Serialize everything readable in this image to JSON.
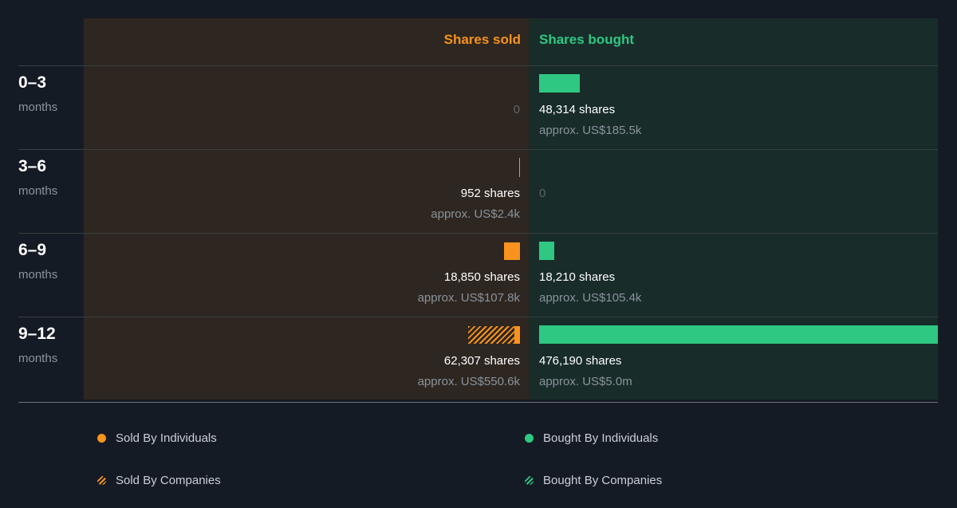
{
  "chart_data": {
    "type": "bar",
    "headers": {
      "sold": "Shares sold",
      "bought": "Shares bought"
    },
    "max_shares": 476190,
    "colors": {
      "sold": "#f7931e",
      "bought": "#2fc882"
    },
    "rows": [
      {
        "period": "0–3",
        "unit": "months",
        "sold": {
          "individuals": 0,
          "companies": 0,
          "label": "0",
          "approx": ""
        },
        "bought": {
          "individuals": 48314,
          "companies": 0,
          "label": "48,314 shares",
          "approx": "approx. US$185.5k"
        }
      },
      {
        "period": "3–6",
        "unit": "months",
        "sold": {
          "individuals": 952,
          "companies": 0,
          "label": "952 shares",
          "approx": "approx. US$2.4k"
        },
        "bought": {
          "individuals": 0,
          "companies": 0,
          "label": "0",
          "approx": ""
        }
      },
      {
        "period": "6–9",
        "unit": "months",
        "sold": {
          "individuals": 18850,
          "companies": 0,
          "label": "18,850 shares",
          "approx": "approx. US$107.8k"
        },
        "bought": {
          "individuals": 18210,
          "companies": 0,
          "label": "18,210 shares",
          "approx": "approx. US$105.4k"
        }
      },
      {
        "period": "9–12",
        "unit": "months",
        "sold": {
          "individuals": 7000,
          "companies": 55307,
          "label": "62,307 shares",
          "approx": "approx. US$550.6k"
        },
        "bought": {
          "individuals": 476190,
          "companies": 0,
          "label": "476,190 shares",
          "approx": "approx. US$5.0m"
        }
      }
    ],
    "legend": [
      {
        "label": "Sold By Individuals",
        "style": "solid",
        "color": "#f7931e"
      },
      {
        "label": "Bought By Individuals",
        "style": "solid",
        "color": "#2fc882"
      },
      {
        "label": "Sold By Companies",
        "style": "hatched",
        "color": "#f7931e"
      },
      {
        "label": "Bought By Companies",
        "style": "hatched",
        "color": "#2fc882"
      }
    ]
  }
}
